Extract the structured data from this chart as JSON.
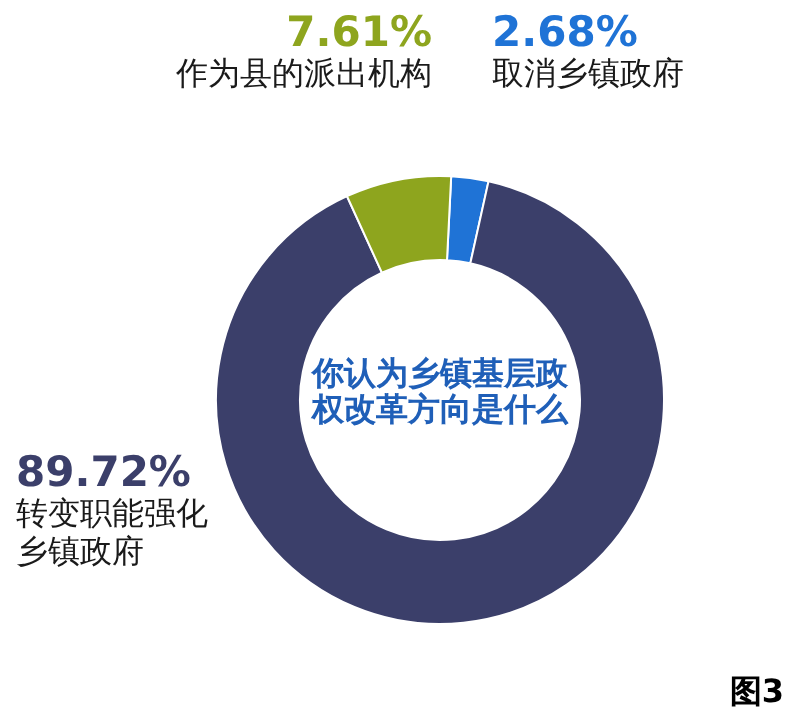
{
  "chart_data": {
    "type": "donut",
    "title": "你认为乡镇基层政权改革方向是什么",
    "categories": [
      "取消乡镇政府",
      "转变职能强化乡镇政府",
      "作为县的派出机构"
    ],
    "values": [
      2.68,
      89.72,
      7.61
    ],
    "value_labels": [
      "2.68%",
      "89.72%",
      "7.61%"
    ],
    "colors": [
      "#1f73d6",
      "#3b3f6a",
      "#8ea51e"
    ],
    "annotations": [
      "图3"
    ]
  }
}
